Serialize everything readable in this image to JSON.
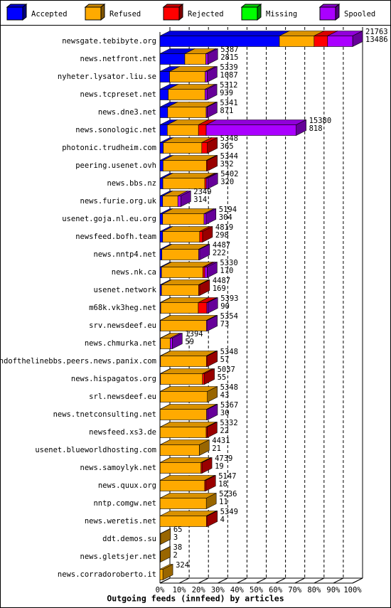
{
  "chart_data": {
    "type": "bar",
    "orientation": "horizontal",
    "title": "Outgoing feeds (innfeed) by articles",
    "categories": [
      "newsgate.tebibyte.org",
      "news.netfront.net",
      "nyheter.lysator.liu.se",
      "news.tcpreset.net",
      "news.dne3.net",
      "news.sonologic.net",
      "photonic.trudheim.com",
      "peering.usenet.ovh",
      "news.bbs.nz",
      "news.furie.org.uk",
      "usenet.goja.nl.eu.org",
      "newsfeed.bofh.team",
      "news.nntp4.net",
      "news.nk.ca",
      "usenet.network",
      "m68k.vk3heg.net",
      "srv.newsdeef.eu",
      "news.chmurka.net",
      "endofthelinebbs.peers.news.panix.com",
      "news.hispagatos.org",
      "srl.newsdeef.eu",
      "news.tnetconsulting.net",
      "newsfeed.xs3.de",
      "usenet.blueworldhosting.com",
      "news.samoylyk.net",
      "news.quux.org",
      "nntp.comgw.net",
      "news.weretis.net",
      "ddt.demos.su",
      "news.gletsjer.net",
      "news.corradoroberto.it"
    ],
    "series": [
      {
        "name": "Accepted",
        "color": "#0000ff",
        "values": [
          62,
          12.9,
          5.0,
          4.3,
          4.0,
          3.8,
          1.7,
          1.6,
          1.5,
          1.4,
          1.4,
          1.4,
          1.0,
          0.8,
          0.8,
          0.4,
          0.3,
          0.3,
          0.3,
          0.3,
          0.2,
          0.1,
          0.1,
          0.1,
          0.1,
          0.1,
          0.05,
          0,
          0,
          0,
          0
        ]
      },
      {
        "name": "Refused",
        "color": "#ffaa00",
        "values": [
          18,
          10.9,
          18.5,
          19.1,
          20.0,
          16.2,
          20.0,
          22.5,
          21.8,
          7.9,
          21.5,
          19.2,
          19.1,
          21.5,
          19.3,
          19.5,
          23.8,
          5.0,
          23.8,
          21.8,
          24.4,
          24.1,
          23.9,
          20.3,
          21.2,
          23.1,
          24.0,
          24.1,
          0.3,
          0.2,
          1.5
        ]
      },
      {
        "name": "Rejected",
        "color": "#ff0000",
        "values": [
          7,
          0,
          0,
          0,
          0,
          4,
          2.9,
          0.5,
          0.8,
          0,
          0,
          1.5,
          0,
          1.0,
          0.5,
          4.4,
          0,
          0,
          0.5,
          1.0,
          0,
          0,
          0.5,
          0,
          0.5,
          0.5,
          0,
          0.5,
          0,
          0,
          0
        ]
      },
      {
        "name": "Missing",
        "color": "#00ff00",
        "values": [
          0,
          0,
          0,
          0,
          0,
          0,
          0,
          0,
          0,
          0,
          0,
          0,
          0,
          0,
          0,
          0,
          0,
          0,
          0,
          0,
          0,
          0,
          0,
          0,
          0,
          0,
          0,
          0,
          0,
          0,
          0
        ]
      },
      {
        "name": "Spooled",
        "color": "#aa00ff",
        "values": [
          13,
          1.0,
          1.0,
          1.0,
          0.5,
          46.7,
          0,
          0,
          0.7,
          1.5,
          1.0,
          0,
          0.5,
          1.2,
          0,
          0.5,
          0.5,
          1.1,
          0,
          0,
          0,
          0.5,
          0,
          0,
          0,
          0,
          0,
          0,
          0,
          0,
          0
        ]
      }
    ],
    "bar_labels": [
      [
        21763,
        13486
      ],
      [
        5387,
        2815
      ],
      [
        5339,
        1087
      ],
      [
        5312,
        939
      ],
      [
        5341,
        871
      ],
      [
        15380,
        818
      ],
      [
        5348,
        365
      ],
      [
        5344,
        352
      ],
      [
        5402,
        320
      ],
      [
        2349,
        314
      ],
      [
        5194,
        304
      ],
      [
        4819,
        298
      ],
      [
        4487,
        222
      ],
      [
        5330,
        170
      ],
      [
        4487,
        169
      ],
      [
        5393,
        90
      ],
      [
        5354,
        73
      ],
      [
        1394,
        59
      ],
      [
        5348,
        57
      ],
      [
        5037,
        55
      ],
      [
        5348,
        43
      ],
      [
        5367,
        30
      ],
      [
        5332,
        22
      ],
      [
        4431,
        21
      ],
      [
        4739,
        19
      ],
      [
        5147,
        18
      ],
      [
        5236,
        11
      ],
      [
        5349,
        4
      ],
      [
        65,
        3
      ],
      [
        38,
        2
      ],
      [
        324
      ]
    ],
    "xlim": [
      0,
      100
    ],
    "xticks": [
      {
        "value": 0,
        "label": "0%"
      },
      {
        "value": 10,
        "label": "10%"
      },
      {
        "value": 20,
        "label": "20%"
      },
      {
        "value": 30,
        "label": "30%"
      },
      {
        "value": 40,
        "label": "40%"
      },
      {
        "value": 50,
        "label": "50%"
      },
      {
        "value": 60,
        "label": "60%"
      },
      {
        "value": 70,
        "label": "70%"
      },
      {
        "value": 80,
        "label": "80%"
      },
      {
        "value": 90,
        "label": "90%"
      },
      {
        "value": 100,
        "label": "100%"
      }
    ],
    "grid": true,
    "legend": "top"
  }
}
